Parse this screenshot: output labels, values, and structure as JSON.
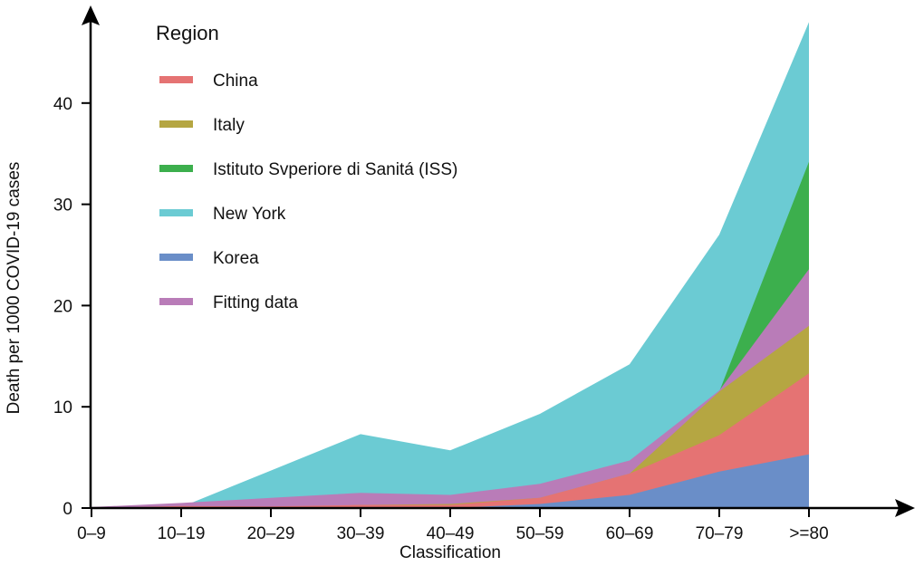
{
  "chart_data": {
    "type": "area",
    "title": "",
    "xlabel": "Classification",
    "ylabel": "Death per 1000 COVID-19 cases",
    "categories": [
      "0–9",
      "10–19",
      "20–29",
      "30–39",
      "40–49",
      "50–59",
      "60–69",
      "70–79",
      ">=80"
    ],
    "ylim": [
      0,
      48
    ],
    "yticks": [
      0,
      10,
      20,
      30,
      40
    ],
    "grid": false,
    "legend": {
      "title": "Region",
      "placement": "top-left"
    },
    "series": [
      {
        "name": "China",
        "color": "#E57373",
        "values": [
          0.0,
          0.2,
          0.15,
          0.3,
          0.3,
          1.0,
          3.4,
          7.2,
          13.3
        ]
      },
      {
        "name": "Italy",
        "color": "#B5A642",
        "values": [
          0.0,
          0.0,
          0.0,
          0.3,
          0.4,
          1.0,
          3.4,
          11.5,
          18.0
        ]
      },
      {
        "name": "Istituto Svperiore di Sanitá (ISS)",
        "color": "#3CAF4D",
        "values": [
          0.0,
          0.0,
          0.0,
          0.3,
          0.4,
          1.0,
          3.4,
          11.5,
          34.2
        ]
      },
      {
        "name": "New York",
        "color": "#6BCBD3",
        "values": [
          0.0,
          0.1,
          3.7,
          7.3,
          5.7,
          9.3,
          14.2,
          27.0,
          48.0
        ]
      },
      {
        "name": "Korea",
        "color": "#6A8EC8",
        "values": [
          0.0,
          0.0,
          0.0,
          0.0,
          0.0,
          0.4,
          1.3,
          3.6,
          5.3
        ]
      },
      {
        "name": "Fitting data",
        "color": "#B97CB8",
        "values": [
          0.1,
          0.5,
          1.0,
          1.5,
          1.3,
          2.4,
          4.7,
          11.6,
          23.6
        ]
      }
    ]
  }
}
